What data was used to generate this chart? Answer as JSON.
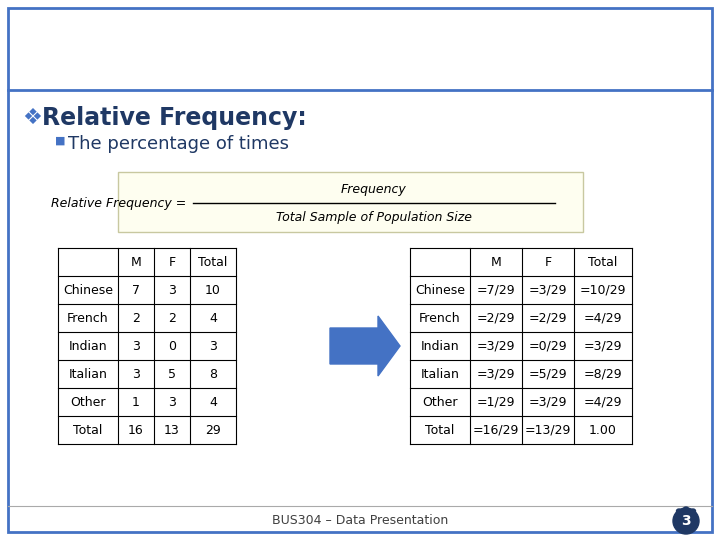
{
  "title": "Relative Frequency:",
  "subtitle": "The percentage of times",
  "formula_left": "Relative Frequency = ",
  "formula_numerator": "Frequency",
  "formula_denominator": "Total Sample of Population Size",
  "table1_headers": [
    "",
    "M",
    "F",
    "Total"
  ],
  "table1_rows": [
    [
      "Chinese",
      "7",
      "3",
      "10"
    ],
    [
      "French",
      "2",
      "2",
      "4"
    ],
    [
      "Indian",
      "3",
      "0",
      "3"
    ],
    [
      "Italian",
      "3",
      "5",
      "8"
    ],
    [
      "Other",
      "1",
      "3",
      "4"
    ],
    [
      "Total",
      "16",
      "13",
      "29"
    ]
  ],
  "table2_headers": [
    "",
    "M",
    "F",
    "Total"
  ],
  "table2_rows": [
    [
      "Chinese",
      "=7/29",
      "=3/29",
      "=10/29"
    ],
    [
      "French",
      "=2/29",
      "=2/29",
      "=4/29"
    ],
    [
      "Indian",
      "=3/29",
      "=0/29",
      "=3/29"
    ],
    [
      "Italian",
      "=3/29",
      "=5/29",
      "=8/29"
    ],
    [
      "Other",
      "=1/29",
      "=3/29",
      "=4/29"
    ],
    [
      "Total",
      "=16/29",
      "=13/29",
      "1.00"
    ]
  ],
  "slide_border_color": "#4472C4",
  "title_color": "#1F3864",
  "subtitle_color": "#1F3864",
  "bullet_color": "#4472C4",
  "sub_bullet_color": "#4472C4",
  "formula_bg": "#FEFEF0",
  "formula_border": "#C8C8A0",
  "footer_text": "BUS304 – Data Presentation",
  "page_number": "3",
  "table_border_color": "#000000",
  "bg_color": "#FFFFFF",
  "arrow_color": "#4472C4",
  "paw_color": "#1F3864"
}
